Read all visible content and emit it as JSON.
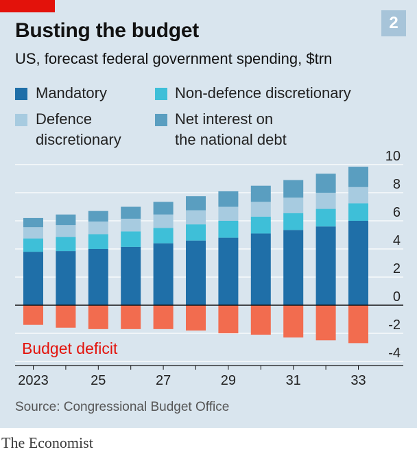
{
  "header": {
    "title": "Busting the budget",
    "subtitle": "US, forecast federal government spending, $trn",
    "badge": "2"
  },
  "legend": [
    {
      "label_lines": [
        "Mandatory"
      ],
      "color": "#1f6fa8"
    },
    {
      "label_lines": [
        "Non-defence discretionary"
      ],
      "color": "#3ebfd8"
    },
    {
      "label_lines": [
        "Defence",
        "discretionary"
      ],
      "color": "#a7cbe0"
    },
    {
      "label_lines": [
        "Net interest on",
        "the national debt"
      ],
      "color": "#5a9ec0"
    }
  ],
  "colors": {
    "deficit": "#f26c4f",
    "accent": "#e3120b",
    "panel": "#d9e5ee"
  },
  "chart_data": {
    "type": "bar",
    "stacked": true,
    "title": "Busting the budget",
    "subtitle": "US, forecast federal government spending, $trn",
    "categories": [
      "2023",
      "2024",
      "2025",
      "2026",
      "2027",
      "2028",
      "2029",
      "2030",
      "2031",
      "2032",
      "2033"
    ],
    "x_tick_labels": [
      "2023",
      "",
      "25",
      "",
      "27",
      "",
      "29",
      "",
      "31",
      "",
      "33"
    ],
    "series": [
      {
        "name": "Mandatory",
        "color": "#1f6fa8",
        "values": [
          3.8,
          3.85,
          4.0,
          4.15,
          4.4,
          4.6,
          4.8,
          5.1,
          5.35,
          5.6,
          6.0
        ]
      },
      {
        "name": "Non-defence discretionary",
        "color": "#3ebfd8",
        "values": [
          0.95,
          1.0,
          1.05,
          1.1,
          1.1,
          1.15,
          1.2,
          1.2,
          1.2,
          1.25,
          1.25
        ]
      },
      {
        "name": "Defence discretionary",
        "color": "#a7cbe0",
        "values": [
          0.8,
          0.85,
          0.9,
          0.9,
          0.95,
          1.0,
          1.0,
          1.05,
          1.1,
          1.15,
          1.15
        ]
      },
      {
        "name": "Net interest on the national debt",
        "color": "#5a9ec0",
        "values": [
          0.65,
          0.75,
          0.75,
          0.85,
          0.9,
          1.0,
          1.1,
          1.15,
          1.25,
          1.35,
          1.45
        ]
      }
    ],
    "deficit": {
      "name": "Budget deficit",
      "label": "Budget deficit",
      "color": "#f26c4f",
      "values": [
        -1.4,
        -1.6,
        -1.7,
        -1.7,
        -1.7,
        -1.8,
        -2.0,
        -2.1,
        -2.3,
        -2.5,
        -2.7
      ]
    },
    "y_ticks": [
      10,
      8,
      6,
      4,
      2,
      0,
      -2,
      -4
    ],
    "y_tick_labels": [
      "10",
      "8",
      "6",
      "4",
      "2",
      "0",
      "-2",
      "-4"
    ],
    "ylim": [
      -4,
      10
    ],
    "xlabel": "",
    "ylabel": ""
  },
  "footer": {
    "source": "Source: Congressional Budget Office",
    "brand": "The Economist"
  }
}
